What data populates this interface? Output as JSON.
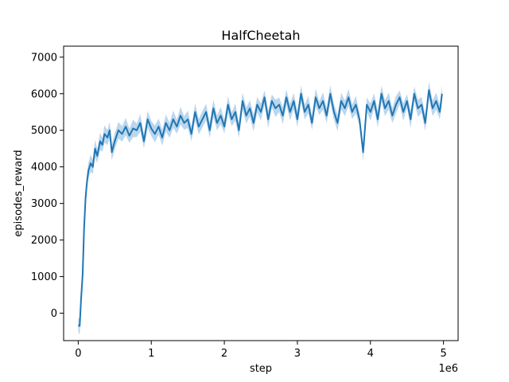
{
  "chart_data": {
    "type": "line",
    "title": "HalfCheetah",
    "xlabel": "step",
    "ylabel": "episodes_reward",
    "x_offset_text": "1e6",
    "xlim": [
      -0.2,
      5.2
    ],
    "ylim": [
      -750,
      7300
    ],
    "xticks": [
      0,
      1,
      2,
      3,
      4,
      5
    ],
    "xtick_labels": [
      "0",
      "1",
      "2",
      "3",
      "4",
      "5"
    ],
    "yticks": [
      0,
      1000,
      2000,
      3000,
      4000,
      5000,
      6000,
      7000
    ],
    "ytick_labels": [
      "0",
      "1000",
      "2000",
      "3000",
      "4000",
      "5000",
      "6000",
      "7000"
    ],
    "grid": false,
    "legend": "none",
    "colors": {
      "line": "#1f77b4",
      "band": "#a6c8e6"
    },
    "series": [
      {
        "x": [
          0.0,
          0.02,
          0.04,
          0.06,
          0.08,
          0.1,
          0.12,
          0.14,
          0.17,
          0.2,
          0.23,
          0.26,
          0.3,
          0.33,
          0.36,
          0.4,
          0.43,
          0.46,
          0.5,
          0.55,
          0.6,
          0.65,
          0.7,
          0.75,
          0.8,
          0.85,
          0.9,
          0.95,
          1.0,
          1.05,
          1.1,
          1.15,
          1.2,
          1.25,
          1.3,
          1.35,
          1.4,
          1.45,
          1.5,
          1.55,
          1.6,
          1.65,
          1.7,
          1.75,
          1.8,
          1.85,
          1.9,
          1.95,
          2.0,
          2.05,
          2.1,
          2.15,
          2.2,
          2.25,
          2.3,
          2.35,
          2.4,
          2.45,
          2.5,
          2.55,
          2.6,
          2.65,
          2.7,
          2.75,
          2.8,
          2.85,
          2.9,
          2.95,
          3.0,
          3.05,
          3.1,
          3.15,
          3.2,
          3.25,
          3.3,
          3.35,
          3.4,
          3.45,
          3.5,
          3.55,
          3.6,
          3.65,
          3.7,
          3.75,
          3.8,
          3.85,
          3.9,
          3.95,
          4.0,
          4.05,
          4.1,
          4.15,
          4.2,
          4.25,
          4.3,
          4.35,
          4.4,
          4.45,
          4.5,
          4.55,
          4.6,
          4.65,
          4.7,
          4.75,
          4.8,
          4.85,
          4.9,
          4.95,
          4.98
        ],
        "y": [
          -330,
          -350,
          400,
          1050,
          2300,
          3150,
          3600,
          3900,
          4100,
          4000,
          4500,
          4300,
          4700,
          4600,
          4900,
          4800,
          5000,
          4400,
          4700,
          5000,
          4900,
          5100,
          4850,
          5050,
          5000,
          5200,
          4700,
          5300,
          5050,
          4900,
          5100,
          4800,
          5200,
          5000,
          5300,
          5100,
          5400,
          5200,
          5300,
          4900,
          5500,
          5100,
          5300,
          5500,
          5000,
          5600,
          5200,
          5400,
          5100,
          5700,
          5300,
          5500,
          5000,
          5800,
          5400,
          5600,
          5200,
          5700,
          5500,
          5900,
          5300,
          5800,
          5600,
          5700,
          5400,
          5900,
          5500,
          5800,
          5300,
          6000,
          5500,
          5700,
          5200,
          5900,
          5600,
          5800,
          5400,
          6000,
          5500,
          5200,
          5800,
          5600,
          5900,
          5500,
          5700,
          5300,
          4400,
          5700,
          5500,
          5800,
          5300,
          6000,
          5600,
          5800,
          5400,
          5700,
          5900,
          5500,
          5800,
          5300,
          6000,
          5600,
          5700,
          5200,
          6100,
          5600,
          5800,
          5500,
          6000
        ]
      }
    ]
  }
}
